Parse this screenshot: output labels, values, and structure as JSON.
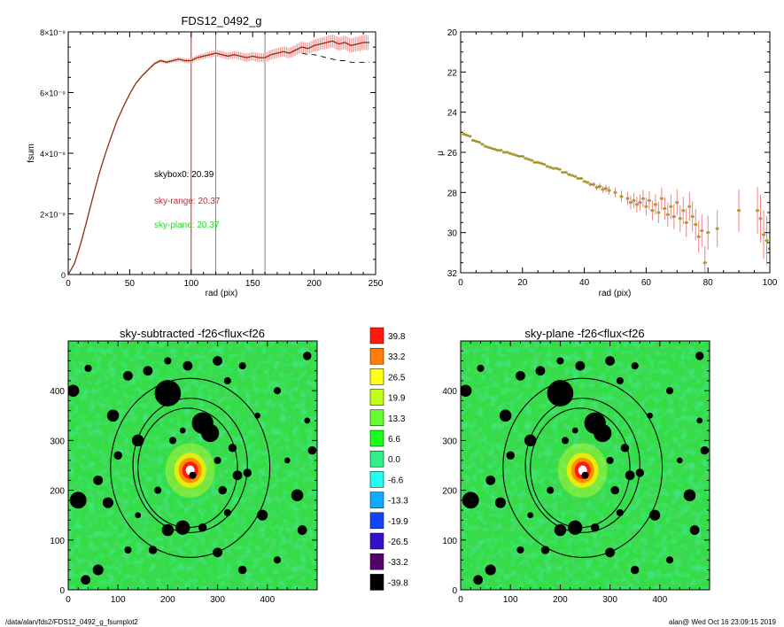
{
  "footer": {
    "left": "/data/alan/fds2/FDS12_0492_g_fsumplot2",
    "right": "alan@  Wed Oct 16 23:09:15 2019"
  },
  "colors": {
    "curve": "#8b2f10",
    "errorbar": "#f08080",
    "vline_red": "#e02020",
    "vline_gray": "#808080",
    "skybox_text": "#000000",
    "range_text": "#e02020",
    "plane_text": "#22dd22",
    "point": "#b0a030"
  },
  "chart_data": [
    {
      "type": "line",
      "title": "FDS12_0492_g",
      "xlabel": "rad (pix)",
      "ylabel": "fsum",
      "xlim": [
        0,
        250
      ],
      "ylim": [
        0,
        8e-09
      ],
      "xticks": [
        "0",
        "50",
        "100",
        "150",
        "200",
        "250"
      ],
      "yticks": [
        "0",
        "2×10⁻⁹",
        "4×10⁻⁹",
        "6×10⁻⁹",
        "8×10⁻⁹"
      ],
      "annotations": [
        "skybox0: 20.39",
        "sky-range: 20.37",
        "sky-plane: 20.37"
      ],
      "vertical_lines": [
        100,
        120,
        160
      ],
      "series": [
        {
          "x": [
            0,
            5,
            10,
            15,
            20,
            25,
            30,
            35,
            40,
            45,
            50,
            55,
            60,
            65,
            70,
            75,
            80,
            85,
            90,
            95,
            100,
            105,
            110,
            115,
            120,
            125,
            130,
            135,
            140,
            145,
            150,
            155,
            160,
            165,
            170,
            175,
            180,
            185,
            190,
            195,
            200,
            205,
            210,
            215,
            220,
            225,
            230,
            235,
            240,
            245
          ],
          "y": [
            0,
            0.35,
            1.0,
            1.75,
            2.55,
            3.3,
            3.95,
            4.55,
            5.1,
            5.55,
            5.95,
            6.3,
            6.55,
            6.75,
            6.95,
            7.05,
            7.0,
            7.05,
            7.1,
            7.05,
            7.05,
            7.15,
            7.2,
            7.25,
            7.3,
            7.25,
            7.2,
            7.25,
            7.2,
            7.15,
            7.2,
            7.15,
            7.15,
            7.25,
            7.3,
            7.35,
            7.3,
            7.4,
            7.5,
            7.45,
            7.55,
            7.6,
            7.65,
            7.7,
            7.6,
            7.65,
            7.55,
            7.6,
            7.65,
            7.65
          ]
        },
        {
          "x": [
            190,
            195,
            200,
            205,
            210,
            215,
            220,
            225,
            230,
            235,
            240,
            245
          ],
          "y": [
            7.3,
            7.25,
            7.25,
            7.2,
            7.15,
            7.1,
            7.05,
            7.05,
            7.0,
            7.0,
            7.0,
            7.0
          ]
        }
      ],
      "scale_note": "y values in units of 1e-9"
    },
    {
      "type": "scatter",
      "xlabel": "rad (pix)",
      "ylabel": "μ",
      "xlim": [
        0,
        100
      ],
      "ylim": [
        32,
        20
      ],
      "xticks": [
        "0",
        "20",
        "40",
        "60",
        "80",
        "100"
      ],
      "yticks": [
        "20",
        "22",
        "24",
        "26",
        "28",
        "30",
        "32"
      ],
      "x": [
        1,
        2,
        3,
        4,
        5,
        6,
        7,
        8,
        9,
        10,
        11,
        12,
        13,
        14,
        15,
        16,
        17,
        18,
        19,
        20,
        21,
        22,
        23,
        24,
        25,
        26,
        27,
        28,
        29,
        30,
        31,
        32,
        33,
        34,
        35,
        36,
        37,
        38,
        39,
        40,
        41,
        42,
        43,
        44,
        45,
        46,
        47,
        48,
        50,
        52,
        54,
        55,
        56,
        57,
        58,
        59,
        60,
        61,
        62,
        63,
        64,
        65,
        66,
        67,
        68,
        69,
        70,
        71,
        72,
        73,
        74,
        75,
        76,
        77,
        78,
        79,
        80,
        83,
        90,
        96,
        97,
        98,
        99,
        100
      ],
      "y": [
        25.1,
        25.15,
        25.2,
        25.4,
        25.45,
        25.5,
        25.6,
        25.7,
        25.75,
        25.8,
        25.85,
        25.9,
        25.9,
        26.0,
        26.0,
        26.05,
        26.1,
        26.15,
        26.2,
        26.2,
        26.3,
        26.35,
        26.4,
        26.5,
        26.5,
        26.55,
        26.6,
        26.7,
        26.75,
        26.8,
        26.8,
        26.85,
        27.0,
        27.0,
        27.1,
        27.15,
        27.2,
        27.3,
        27.3,
        27.45,
        27.5,
        27.6,
        27.6,
        27.75,
        27.7,
        27.85,
        27.8,
        27.9,
        28.0,
        28.2,
        28.3,
        28.5,
        28.4,
        28.6,
        28.5,
        28.3,
        28.7,
        28.4,
        28.9,
        28.6,
        29.0,
        28.3,
        28.8,
        29.1,
        28.7,
        29.2,
        28.5,
        29.3,
        28.9,
        29.5,
        28.7,
        29.2,
        29.6,
        30.2,
        29.9,
        31.5,
        30.0,
        29.8,
        28.9,
        28.9,
        29.3,
        30.1,
        30.4,
        30.8
      ]
    },
    {
      "type": "heatmap",
      "title": "sky-subtracted -f26<flux<f26",
      "xticks": [
        "0",
        "100",
        "200",
        "300",
        "400"
      ],
      "yticks": [
        "0",
        "100",
        "200",
        "300",
        "400"
      ],
      "xlim": [
        0,
        500
      ],
      "ylim": [
        0,
        500
      ],
      "ellipses": [
        {
          "cx": 245,
          "cy": 250,
          "rx": 115,
          "ry": 135
        },
        {
          "cx": 245,
          "cy": 245,
          "rx": 160,
          "ry": 180
        },
        {
          "cx": 240,
          "cy": 245,
          "rx": 100,
          "ry": 120
        }
      ]
    },
    {
      "type": "heatmap",
      "title": "sky-plane -f26<flux<f26",
      "xticks": [
        "0",
        "100",
        "200",
        "300",
        "400"
      ],
      "yticks": [
        "0",
        "100",
        "200",
        "300",
        "400"
      ],
      "xlim": [
        0,
        500
      ],
      "ylim": [
        0,
        500
      ]
    }
  ],
  "colorbar": {
    "labels": [
      "39.8",
      "33.2",
      "26.5",
      "19.9",
      "13.3",
      "6.6",
      "0.0",
      "-6.6",
      "-13.3",
      "-19.9",
      "-26.5",
      "-33.2",
      "-39.8"
    ],
    "colors": [
      "#ff1a0d",
      "#ff7f0a",
      "#ffff1a",
      "#bfff1a",
      "#66ff33",
      "#1aff1a",
      "#33ee88",
      "#22ffee",
      "#11aaff",
      "#1144ff",
      "#3311cc",
      "#550066",
      "#000000"
    ]
  },
  "sources": [
    {
      "x": 200,
      "y": 395,
      "r": 22
    },
    {
      "x": 270,
      "y": 335,
      "r": 18
    },
    {
      "x": 285,
      "y": 315,
      "r": 15
    },
    {
      "x": 90,
      "y": 350,
      "r": 10
    },
    {
      "x": 100,
      "y": 270,
      "r": 7
    },
    {
      "x": 120,
      "y": 430,
      "r": 8
    },
    {
      "x": 140,
      "y": 300,
      "r": 10
    },
    {
      "x": 160,
      "y": 440,
      "r": 8
    },
    {
      "x": 200,
      "y": 460,
      "r": 6
    },
    {
      "x": 240,
      "y": 450,
      "r": 8
    },
    {
      "x": 300,
      "y": 460,
      "r": 8
    },
    {
      "x": 320,
      "y": 420,
      "r": 6
    },
    {
      "x": 350,
      "y": 450,
      "r": 6
    },
    {
      "x": 340,
      "y": 230,
      "r": 8
    },
    {
      "x": 360,
      "y": 235,
      "r": 7
    },
    {
      "x": 380,
      "y": 350,
      "r": 5
    },
    {
      "x": 390,
      "y": 150,
      "r": 9
    },
    {
      "x": 350,
      "y": 40,
      "r": 7
    },
    {
      "x": 300,
      "y": 75,
      "r": 8
    },
    {
      "x": 270,
      "y": 125,
      "r": 7
    },
    {
      "x": 230,
      "y": 125,
      "r": 12
    },
    {
      "x": 200,
      "y": 120,
      "r": 10
    },
    {
      "x": 170,
      "y": 80,
      "r": 7
    },
    {
      "x": 120,
      "y": 80,
      "r": 6
    },
    {
      "x": 80,
      "y": 175,
      "r": 9
    },
    {
      "x": 60,
      "y": 220,
      "r": 8
    },
    {
      "x": 20,
      "y": 180,
      "r": 14
    },
    {
      "x": 10,
      "y": 400,
      "r": 10
    },
    {
      "x": 40,
      "y": 445,
      "r": 6
    },
    {
      "x": 60,
      "y": 40,
      "r": 9
    },
    {
      "x": 35,
      "y": 20,
      "r": 8
    },
    {
      "x": 460,
      "y": 190,
      "r": 10
    },
    {
      "x": 470,
      "y": 120,
      "r": 8
    },
    {
      "x": 490,
      "y": 280,
      "r": 7
    },
    {
      "x": 480,
      "y": 340,
      "r": 5
    },
    {
      "x": 250,
      "y": 230,
      "r": 6
    },
    {
      "x": 310,
      "y": 200,
      "r": 7
    },
    {
      "x": 330,
      "y": 285,
      "r": 7
    },
    {
      "x": 210,
      "y": 300,
      "r": 6
    },
    {
      "x": 180,
      "y": 200,
      "r": 6
    },
    {
      "x": 140,
      "y": 150,
      "r": 5
    },
    {
      "x": 420,
      "y": 60,
      "r": 6
    },
    {
      "x": 440,
      "y": 260,
      "r": 5
    },
    {
      "x": 420,
      "y": 400,
      "r": 6
    },
    {
      "x": 480,
      "y": 470,
      "r": 7
    },
    {
      "x": 300,
      "y": 260,
      "r": 6
    },
    {
      "x": 320,
      "y": 155,
      "r": 6
    },
    {
      "x": 230,
      "y": 320,
      "r": 5
    }
  ]
}
